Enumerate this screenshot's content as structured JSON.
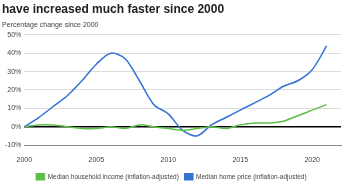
{
  "chart_data": {
    "type": "line",
    "title": "have increased much faster since 2000",
    "subtitle": "Percentage change since 2000",
    "x": [
      2000,
      2001,
      2002,
      2003,
      2004,
      2005,
      2006,
      2007,
      2008,
      2009,
      2010,
      2011,
      2012,
      2013,
      2014,
      2015,
      2016,
      2017,
      2018,
      2019,
      2020,
      2021
    ],
    "series": [
      {
        "name": "Median household income (inflation-adjusted)",
        "color": "#5cbf4a",
        "values": [
          0,
          1,
          1,
          0,
          -1,
          -1,
          0,
          -1,
          1,
          0,
          -1,
          -2,
          -1,
          0,
          -1,
          1,
          2,
          2,
          3,
          6,
          9,
          12
        ]
      },
      {
        "name": "Median home price (inflation-adjusted)",
        "color": "#3572d6",
        "values": [
          0,
          5,
          11,
          17,
          25,
          34,
          40,
          37,
          25,
          12,
          7,
          -2,
          -5,
          1,
          5,
          9,
          13,
          17,
          22,
          25,
          31,
          44
        ]
      }
    ],
    "xlim": [
      2000,
      2022
    ],
    "xticks": [
      2000,
      2005,
      2010,
      2015,
      2020
    ],
    "ylim": [
      -10,
      50
    ],
    "yticks": [
      {
        "value": -10,
        "label": "-10%"
      },
      {
        "value": 0,
        "label": "0%"
      },
      {
        "value": 10,
        "label": "10%"
      },
      {
        "value": 20,
        "label": "20%"
      },
      {
        "value": 30,
        "label": "30%"
      },
      {
        "value": 40,
        "label": "40%"
      },
      {
        "value": 50,
        "label": "50%"
      }
    ],
    "grid": true,
    "legend": "bottom"
  }
}
